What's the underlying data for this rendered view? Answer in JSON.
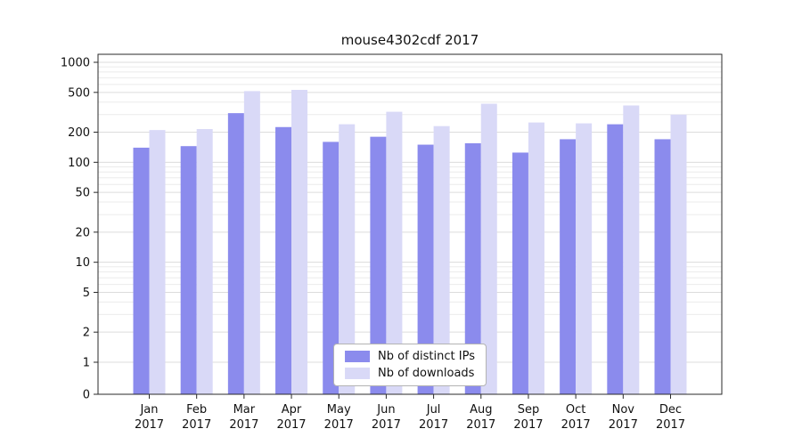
{
  "chart_data": {
    "type": "bar",
    "scale": "log",
    "title": "mouse4302cdf 2017",
    "year": "2017",
    "categories": [
      "Jan",
      "Feb",
      "Mar",
      "Apr",
      "May",
      "Jun",
      "Jul",
      "Aug",
      "Sep",
      "Oct",
      "Nov",
      "Dec"
    ],
    "series": [
      {
        "name": "Nb of distinct IPs",
        "color": "#8b8bed",
        "values": [
          140,
          145,
          310,
          225,
          160,
          180,
          150,
          155,
          125,
          170,
          240,
          170
        ]
      },
      {
        "name": "Nb of downloads",
        "color": "#d9d9f7",
        "values": [
          210,
          215,
          515,
          530,
          240,
          320,
          230,
          385,
          250,
          245,
          370,
          300
        ]
      }
    ],
    "y_ticks": [
      0,
      1,
      2,
      5,
      10,
      20,
      50,
      100,
      200,
      500,
      1000
    ],
    "ylim": [
      0,
      1200
    ],
    "grid": true,
    "legend_position": "bottom-center"
  },
  "colors": {
    "background": "#ffffff",
    "axis": "#2a2a2a",
    "grid_major": "#dcdcdc",
    "grid_minor": "#ebebeb",
    "text": "#111111"
  }
}
